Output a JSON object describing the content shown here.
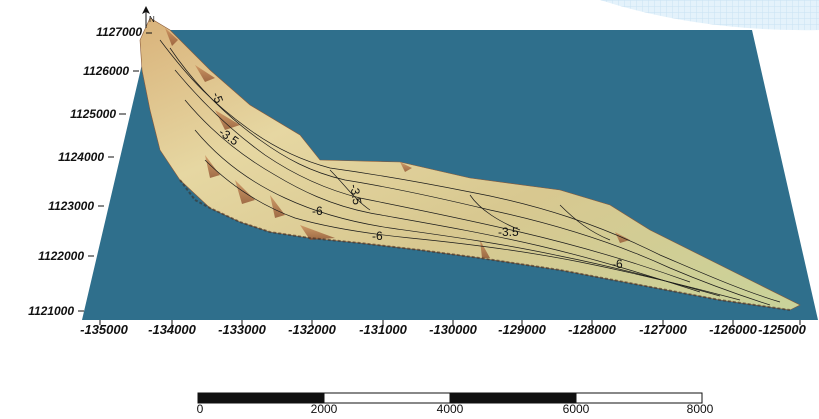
{
  "map": {
    "colors": {
      "water": "#2f6f8c",
      "terrain_light": "#e8dca8",
      "terrain_mid": "#c9a26a",
      "terrain_dark": "#a0542e",
      "contour": "#1a1a1a",
      "grid_tint": "#d9ecf7"
    },
    "y_ticks": [
      "1127000",
      "1126000",
      "1125000",
      "1124000",
      "1123000",
      "1122000",
      "1121000"
    ],
    "x_ticks": [
      "-135000",
      "-134000",
      "-133000",
      "-132000",
      "-131000",
      "-130000",
      "-129000",
      "-128000",
      "-127000",
      "-126000",
      "-125000"
    ],
    "contour_labels": [
      "-3.5",
      "-5",
      "-6",
      "-3.5",
      "-6",
      "-3.5",
      "-6"
    ],
    "scale_bar": {
      "labels": [
        "0",
        "2000",
        "4000",
        "6000",
        "8000"
      ],
      "max_value": 8000
    },
    "north_icon": "north-arrow-icon"
  }
}
